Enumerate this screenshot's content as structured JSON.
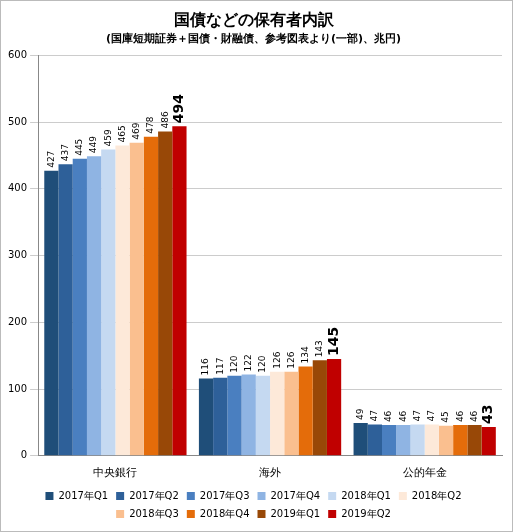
{
  "chart_data": {
    "type": "bar",
    "title": "国債などの保有者内訳",
    "subtitle": "(国庫短期証券＋国債・財融債、参考図表より(一部)、兆円)",
    "categories": [
      "中央銀行",
      "海外",
      "公的年金"
    ],
    "series": [
      {
        "name": "2017年Q1",
        "color": "#1f4e79",
        "values": [
          427,
          116,
          49
        ]
      },
      {
        "name": "2017年Q2",
        "color": "#2e6099",
        "values": [
          437,
          117,
          47
        ]
      },
      {
        "name": "2017年Q3",
        "color": "#4a7fc0",
        "values": [
          445,
          120,
          46
        ]
      },
      {
        "name": "2017年Q4",
        "color": "#8fb4e3",
        "values": [
          449,
          122,
          46
        ]
      },
      {
        "name": "2018年Q1",
        "color": "#c5d9f1",
        "values": [
          459,
          120,
          47
        ]
      },
      {
        "name": "2018年Q2",
        "color": "#fde9d9",
        "values": [
          465,
          126,
          47
        ]
      },
      {
        "name": "2018年Q3",
        "color": "#fabf8f",
        "values": [
          469,
          126,
          45
        ]
      },
      {
        "name": "2018年Q4",
        "color": "#e46c0a",
        "values": [
          478,
          134,
          46
        ]
      },
      {
        "name": "2019年Q1",
        "color": "#984807",
        "values": [
          486,
          143,
          46
        ]
      },
      {
        "name": "2019年Q2",
        "color": "#c00000",
        "values": [
          494,
          145,
          43
        ]
      }
    ],
    "ylim": [
      0,
      600
    ],
    "yticks": [
      0,
      100,
      200,
      300,
      400,
      500,
      600
    ],
    "grid": true,
    "legend": "bottom",
    "data_labels": true
  }
}
